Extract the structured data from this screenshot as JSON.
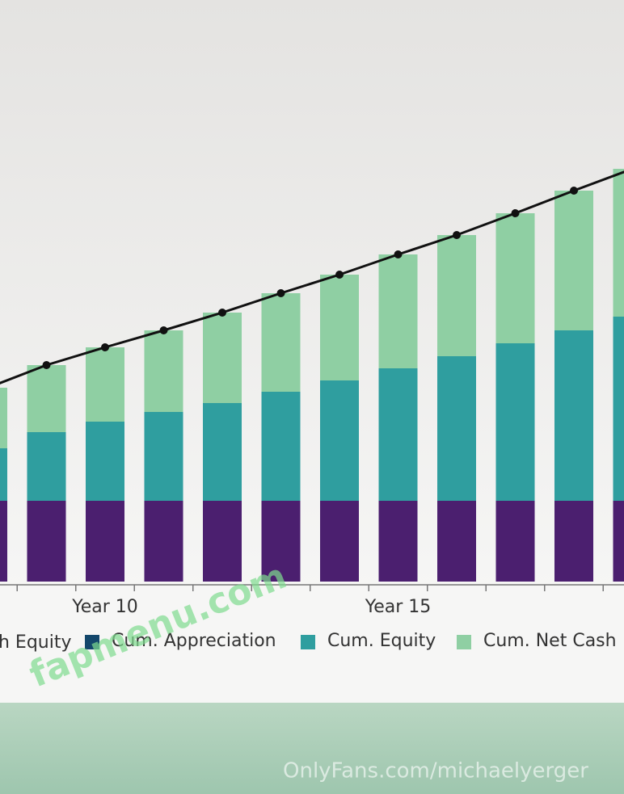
{
  "chart_data": {
    "type": "bar",
    "stacked": true,
    "categories": [
      null,
      null,
      "Year 10",
      null,
      null,
      null,
      null,
      "Year 15",
      null,
      null,
      null,
      null
    ],
    "ylim": [
      0,
      720
    ],
    "series": [
      {
        "name": "h Equity",
        "color": "#4b1f6f",
        "values": [
          100,
          100,
          100,
          100,
          100,
          100,
          100,
          100,
          100,
          100,
          100,
          100
        ]
      },
      {
        "name": "Cum. Appreciation",
        "color": "#13476b",
        "values": [
          0,
          0,
          0,
          0,
          0,
          0,
          0,
          0,
          0,
          0,
          0,
          0
        ]
      },
      {
        "name": "Cum. Equity",
        "color": "#2f9e9f",
        "values": [
          65,
          85,
          98,
          110,
          121,
          135,
          149,
          164,
          179,
          195,
          211,
          228
        ]
      },
      {
        "name": "Cum. Net Cash",
        "color": "#8fcfa3",
        "values": [
          75,
          83,
          92,
          101,
          112,
          122,
          131,
          141,
          150,
          161,
          173,
          183
        ]
      },
      {
        "type": "line",
        "color": "#111111",
        "values": [
          240,
          268,
          290,
          311,
          333,
          357,
          380,
          405,
          429,
          456,
          484,
          511
        ]
      }
    ]
  },
  "watermarks": [
    "fapmenu.com",
    "OnlyFans.com/michaelyerger"
  ]
}
